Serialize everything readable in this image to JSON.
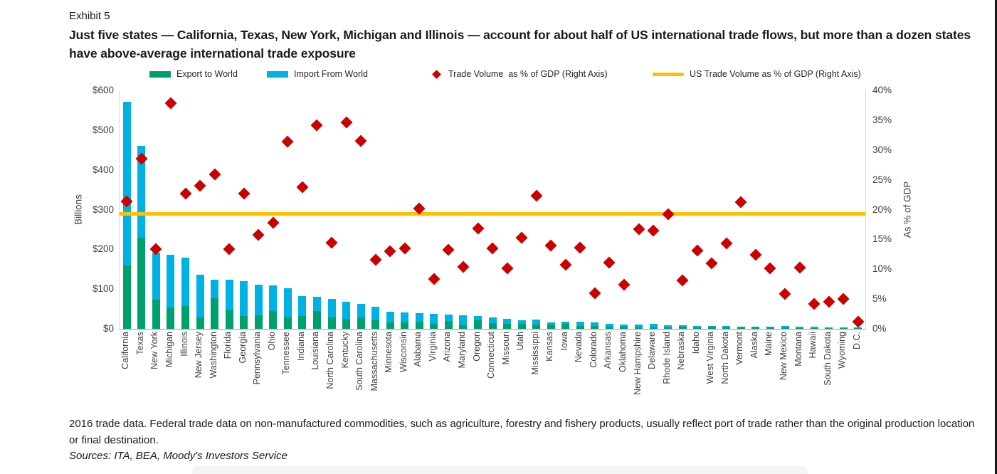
{
  "page": {
    "exhibit_label": "Exhibit 5",
    "title": "Just five states — California, Texas, New York, Michigan and Illinois — account for about half of US international trade flows, but more than a dozen states have above-average international trade exposure",
    "footnote": "2016 trade data. Federal trade data on non-manufactured commodities, such as agriculture, forestry and fishery products, usually reflect port of trade rather than the original production location or final destination.",
    "sources": "Sources: ITA, BEA, Moody's Investors Service"
  },
  "colors": {
    "export_green": "#00a06e",
    "import_blue": "#00b2e3",
    "diamond_red": "#cc0000",
    "us_line_yellow": "#ffc000"
  },
  "legend": {
    "items": [
      {
        "label": "Export to World",
        "marker": "swatch",
        "color_key": "export_green"
      },
      {
        "label": "Import From World",
        "marker": "swatch",
        "color_key": "import_blue"
      },
      {
        "label": "Trade Volume  as % of GDP (Right Axis)",
        "marker": "diamond",
        "color_key": "diamond_red"
      },
      {
        "label": "US Trade Volume as % of GDP (Right Axis)",
        "marker": "line",
        "color_key": "us_line_yellow"
      }
    ]
  },
  "chart_data": {
    "type": "bar",
    "subtype": "stacked-bars-with-scatter-overlay",
    "left_axis": {
      "label": "Billions",
      "min": 0,
      "max": 600,
      "tick_step": 100,
      "tick_labels": [
        "$0",
        "$100",
        "$200",
        "$300",
        "$400",
        "$500",
        "$600"
      ]
    },
    "right_axis": {
      "label": "As % of GDP",
      "min": 0,
      "max": 40,
      "tick_step": 5,
      "tick_labels": [
        "0%",
        "5%",
        "10%",
        "15%",
        "20%",
        "25%",
        "30%",
        "35%",
        "40%"
      ]
    },
    "grid": false,
    "legend_position": "top",
    "us_trade_volume_pct": 19.3,
    "categories": [
      "California",
      "Texas",
      "New York",
      "Michigan",
      "Illinois",
      "New Jersey",
      "Washington",
      "Florida",
      "Georgia",
      "Pennsylvania",
      "Ohio",
      "Tennessee",
      "Indiana",
      "Louisiana",
      "North Carolina",
      "Kentucky",
      "South Carolina",
      "Massachusetts",
      "Minnesota",
      "Wisconsin",
      "Alabama",
      "Virginia",
      "Arizona",
      "Maryland",
      "Oregon",
      "Connecticut",
      "Missouri",
      "Utah",
      "Mississippi",
      "Kansas",
      "Iowa",
      "Nevada",
      "Colorado",
      "Arkansas",
      "Oklahoma",
      "New Hampshire",
      "Delaware",
      "Rhode Island",
      "Nebraska",
      "Idaho",
      "West Virginia",
      "North Dakota",
      "Vermont",
      "Alaska",
      "Maine",
      "New Mexico",
      "Montana",
      "Hawaii",
      "South Dakota",
      "Wyoming",
      "D.C."
    ],
    "series": [
      {
        "name": "Export to World",
        "unit": "$B",
        "values": [
          160,
          230,
          73,
          54,
          57,
          28,
          77,
          49,
          33,
          34,
          45,
          29,
          32,
          45,
          28,
          26,
          29,
          22,
          16,
          17,
          18,
          12,
          19,
          9,
          21,
          15,
          13,
          12,
          10,
          10,
          12,
          8,
          8,
          6,
          6,
          4,
          4,
          3,
          6,
          4,
          5,
          4,
          3,
          4,
          3,
          3,
          2,
          1,
          1.5,
          1,
          0.5
        ]
      },
      {
        "name": "Import From World",
        "unit": "$B",
        "values": [
          412,
          230,
          119,
          132,
          122,
          108,
          47,
          74,
          87,
          77,
          65,
          73,
          50,
          35,
          47,
          42,
          33,
          33,
          27,
          24,
          21,
          25,
          17,
          26,
          12,
          14,
          12,
          9,
          13,
          7,
          6,
          10,
          9,
          7,
          5,
          7,
          9,
          6,
          3,
          3,
          3,
          3,
          3,
          2,
          3,
          4,
          3,
          3,
          1,
          1.5,
          1
        ]
      },
      {
        "name": "Trade Volume as % of GDP (Right Axis)",
        "unit": "%",
        "values": [
          21.4,
          28.5,
          13.4,
          37.9,
          22.7,
          24.0,
          25.9,
          13.4,
          22.7,
          15.8,
          17.8,
          31.4,
          23.8,
          34.1,
          14.4,
          34.6,
          31.5,
          11.6,
          13.0,
          13.5,
          20.2,
          8.4,
          13.2,
          10.4,
          16.8,
          13.5,
          10.2,
          15.3,
          22.3,
          14.0,
          10.7,
          13.6,
          6.0,
          11.1,
          7.4,
          16.7,
          16.5,
          19.2,
          8.1,
          13.1,
          11.0,
          14.3,
          21.3,
          12.4,
          10.1,
          5.9,
          10.3,
          4.2,
          4.6,
          5.0,
          1.2
        ]
      }
    ]
  }
}
